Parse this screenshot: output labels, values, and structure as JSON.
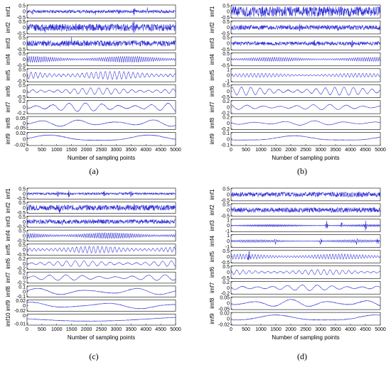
{
  "chart_data": [
    {
      "type": "line",
      "title": "",
      "caption": "(a)",
      "xlabel": "Number of sampling points",
      "xlim": [
        0,
        5000
      ],
      "xticks": [
        "0",
        "500",
        "1000",
        "1500",
        "2000",
        "2500",
        "3000",
        "3500",
        "4000",
        "4500",
        "5000"
      ],
      "line_color": "#2b2bd6",
      "panels": [
        {
          "name": "imf1",
          "ticks": [
            "0.5",
            "0",
            "-0.5"
          ],
          "ylim": [
            -0.5,
            0.5
          ],
          "style": "noise",
          "amp": 0.12,
          "freq": 0,
          "seed": 11,
          "bursts": [
            [
              200,
              0.35
            ],
            [
              2300,
              0.3
            ],
            [
              3100,
              0.45
            ],
            [
              3600,
              0.4
            ],
            [
              4050,
              0.3
            ]
          ]
        },
        {
          "name": "imf2",
          "ticks": [
            "0.5",
            "0",
            "-0.5"
          ],
          "ylim": [
            -0.5,
            0.5
          ],
          "style": "noise",
          "amp": 0.28,
          "freq": 0,
          "seed": 12,
          "bursts": [
            [
              600,
              0.45
            ],
            [
              3600,
              0.4
            ]
          ]
        },
        {
          "name": "imf3",
          "ticks": [
            "0.5",
            "0",
            "-0.5"
          ],
          "ylim": [
            -0.5,
            0.5
          ],
          "style": "noise",
          "amp": 0.22,
          "freq": 0,
          "seed": 13,
          "bursts": [
            [
              250,
              0.4
            ],
            [
              1500,
              0.35
            ]
          ]
        },
        {
          "name": "imf4",
          "ticks": [
            "0.5",
            "0",
            "-0.5"
          ],
          "ylim": [
            -0.5,
            0.5
          ],
          "style": "wave",
          "amp": 0.22,
          "freq": 70,
          "seed": 14,
          "bursts": []
        },
        {
          "name": "imf5",
          "ticks": [
            "0.5",
            "0",
            "-0.5"
          ],
          "ylim": [
            -0.5,
            0.5
          ],
          "style": "wave",
          "amp": 0.3,
          "freq": 32,
          "seed": 15,
          "bursts": []
        },
        {
          "name": "imf6",
          "ticks": [
            "0.5",
            "0",
            "-0.5"
          ],
          "ylim": [
            -0.5,
            0.5
          ],
          "style": "wave",
          "amp": 0.25,
          "freq": 18,
          "seed": 16,
          "bursts": []
        },
        {
          "name": "imf7",
          "ticks": [
            "0.2",
            "0",
            "-0.2"
          ],
          "ylim": [
            -0.2,
            0.2
          ],
          "style": "wave",
          "amp": 0.13,
          "freq": 9,
          "seed": 17,
          "bursts": []
        },
        {
          "name": "imf8",
          "ticks": [
            "0.05",
            "0",
            "-0.05"
          ],
          "ylim": [
            -0.07,
            0.07
          ],
          "style": "wave",
          "amp": 0.035,
          "freq": 4,
          "seed": 18,
          "bursts": []
        },
        {
          "name": "imf9",
          "ticks": [
            "0.02",
            "0",
            "-0.02"
          ],
          "ylim": [
            -0.02,
            0.02
          ],
          "style": "wave",
          "amp": 0.012,
          "freq": 1.5,
          "seed": 19,
          "bursts": []
        }
      ]
    },
    {
      "type": "line",
      "title": "",
      "caption": "(b)",
      "xlabel": "Number of sampling points",
      "xlim": [
        0,
        5000
      ],
      "xticks": [
        "0",
        "500",
        "1000",
        "1500",
        "2000",
        "2500",
        "3000",
        "3500",
        "4000",
        "4500",
        "5000"
      ],
      "line_color": "#2b2bd6",
      "panels": [
        {
          "name": "imf1",
          "ticks": [
            "0.5",
            "0",
            "-0.5"
          ],
          "ylim": [
            -0.5,
            0.5
          ],
          "style": "noise",
          "amp": 0.4,
          "freq": 0,
          "seed": 21,
          "bursts": []
        },
        {
          "name": "imf2",
          "ticks": [
            "0.5",
            "0",
            "-0.5"
          ],
          "ylim": [
            -0.5,
            0.5
          ],
          "style": "noise",
          "amp": 0.18,
          "freq": 0,
          "seed": 22,
          "bursts": [
            [
              2300,
              0.3
            ],
            [
              3600,
              0.3
            ]
          ]
        },
        {
          "name": "imf3",
          "ticks": [
            "0.5",
            "0",
            "-0.5"
          ],
          "ylim": [
            -0.5,
            0.5
          ],
          "style": "noise",
          "amp": 0.15,
          "freq": 0,
          "seed": 23,
          "bursts": [
            [
              2800,
              0.35
            ],
            [
              4050,
              0.3
            ]
          ]
        },
        {
          "name": "imf4",
          "ticks": [
            "0.5",
            "0",
            "-0.5"
          ],
          "ylim": [
            -0.5,
            0.5
          ],
          "style": "wave",
          "amp": 0.15,
          "freq": 70,
          "seed": 24,
          "bursts": []
        },
        {
          "name": "imf5",
          "ticks": [
            "1",
            "0",
            "-1"
          ],
          "ylim": [
            -1,
            1
          ],
          "style": "wave",
          "amp": 0.3,
          "freq": 40,
          "seed": 25,
          "bursts": []
        },
        {
          "name": "imf6",
          "ticks": [
            "0.5",
            "0",
            "-0.5"
          ],
          "ylim": [
            -0.5,
            0.5
          ],
          "style": "wave",
          "amp": 0.3,
          "freq": 16,
          "seed": 26,
          "bursts": []
        },
        {
          "name": "imf7",
          "ticks": [
            "0.2",
            "0",
            "-0.2"
          ],
          "ylim": [
            -0.2,
            0.2
          ],
          "style": "wave",
          "amp": 0.08,
          "freq": 9,
          "seed": 27,
          "bursts": []
        },
        {
          "name": "imf8",
          "ticks": [
            "0.2",
            "0",
            "-0.2"
          ],
          "ylim": [
            -0.2,
            0.2
          ],
          "style": "wave",
          "amp": 0.07,
          "freq": 5,
          "seed": 28,
          "bursts": []
        },
        {
          "name": "imf9",
          "ticks": [
            "0.1",
            "0",
            "-0.1"
          ],
          "ylim": [
            -0.1,
            0.1
          ],
          "style": "wave",
          "amp": 0.05,
          "freq": 1.5,
          "seed": 29,
          "bursts": []
        }
      ]
    },
    {
      "type": "line",
      "title": "",
      "caption": "(c)",
      "xlabel": "Number of sampling points",
      "xlim": [
        0,
        5000
      ],
      "xticks": [
        "0",
        "500",
        "1000",
        "1500",
        "2000",
        "2500",
        "3000",
        "3500",
        "4000",
        "4500",
        "5000"
      ],
      "line_color": "#2b2bd6",
      "panels": [
        {
          "name": "imf1",
          "ticks": [
            "0.5",
            "0",
            "-0.5"
          ],
          "ylim": [
            -0.5,
            0.5
          ],
          "style": "noise",
          "amp": 0.1,
          "freq": 0,
          "seed": 31,
          "bursts": [
            [
              1050,
              0.4
            ],
            [
              1400,
              0.4
            ],
            [
              2600,
              0.3
            ],
            [
              3500,
              0.3
            ]
          ]
        },
        {
          "name": "imf2",
          "ticks": [
            "0.5",
            "0",
            "-0.5"
          ],
          "ylim": [
            -0.5,
            0.5
          ],
          "style": "noise",
          "amp": 0.25,
          "freq": 0,
          "seed": 32,
          "bursts": [
            [
              1100,
              0.4
            ],
            [
              3600,
              0.35
            ]
          ]
        },
        {
          "name": "imf3",
          "ticks": [
            "0.5",
            "0",
            "-0.5"
          ],
          "ylim": [
            -0.5,
            0.5
          ],
          "style": "noise",
          "amp": 0.2,
          "freq": 0,
          "seed": 33,
          "bursts": [
            [
              1200,
              0.35
            ]
          ]
        },
        {
          "name": "imf4",
          "ticks": [
            "0.5",
            "0",
            "-0.5"
          ],
          "ylim": [
            -0.5,
            0.5
          ],
          "style": "wave",
          "amp": 0.25,
          "freq": 80,
          "seed": 34,
          "bursts": []
        },
        {
          "name": "imf5",
          "ticks": [
            "0.5",
            "0",
            "-0.5"
          ],
          "ylim": [
            -0.5,
            0.5
          ],
          "style": "wave",
          "amp": 0.3,
          "freq": 35,
          "seed": 35,
          "bursts": []
        },
        {
          "name": "imf6",
          "ticks": [
            "0.2",
            "0",
            "-0.2"
          ],
          "ylim": [
            -0.2,
            0.2
          ],
          "style": "wave",
          "amp": 0.1,
          "freq": 17,
          "seed": 36,
          "bursts": []
        },
        {
          "name": "imf7",
          "ticks": [
            "0.2",
            "0",
            "-0.2"
          ],
          "ylim": [
            -0.2,
            0.2
          ],
          "style": "wave",
          "amp": 0.1,
          "freq": 9,
          "seed": 37,
          "bursts": []
        },
        {
          "name": "imf8",
          "ticks": [
            "0.1",
            "0",
            "-0.1"
          ],
          "ylim": [
            -0.1,
            0.1
          ],
          "style": "wave",
          "amp": 0.06,
          "freq": 3,
          "seed": 38,
          "bursts": []
        },
        {
          "name": "imf9",
          "ticks": [
            "0.02",
            "0",
            "-0.02"
          ],
          "ylim": [
            -0.02,
            0.02
          ],
          "style": "wave",
          "amp": 0.012,
          "freq": 2,
          "seed": 39,
          "bursts": []
        },
        {
          "name": "imf10",
          "ticks": [
            "0",
            "-0.01"
          ],
          "ylim": [
            -0.012,
            0.002
          ],
          "style": "trend",
          "amp": 0.004,
          "freq": 1,
          "seed": 40,
          "bursts": []
        }
      ]
    },
    {
      "type": "line",
      "title": "",
      "caption": "(d)",
      "xlabel": "Number of sampling points",
      "xlim": [
        0,
        5000
      ],
      "xticks": [
        "0",
        "500",
        "1000",
        "1500",
        "2000",
        "2500",
        "3000",
        "3500",
        "4000",
        "4500",
        "5000"
      ],
      "line_color": "#2b2bd6",
      "panels": [
        {
          "name": "imf1",
          "ticks": [
            "0.5",
            "0",
            "-0.5"
          ],
          "ylim": [
            -0.5,
            0.5
          ],
          "style": "noise",
          "amp": 0.2,
          "freq": 0,
          "seed": 41,
          "bursts": []
        },
        {
          "name": "imf2",
          "ticks": [
            "0.5",
            "0",
            "-0.5"
          ],
          "ylim": [
            -0.5,
            0.5
          ],
          "style": "noise",
          "amp": 0.2,
          "freq": 0,
          "seed": 42,
          "bursts": []
        },
        {
          "name": "imf3",
          "ticks": [
            "1",
            "0",
            "-1"
          ],
          "ylim": [
            -1,
            1
          ],
          "style": "wave",
          "amp": 0.15,
          "freq": 140,
          "seed": 43,
          "bursts": [
            [
              3200,
              0.8
            ],
            [
              3700,
              0.7
            ],
            [
              4500,
              0.9
            ]
          ]
        },
        {
          "name": "imf4",
          "ticks": [
            "1",
            "0",
            "-1"
          ],
          "ylim": [
            -1,
            1
          ],
          "style": "wave",
          "amp": 0.2,
          "freq": 90,
          "seed": 44,
          "bursts": [
            [
              1500,
              0.7
            ],
            [
              3000,
              0.6
            ],
            [
              4200,
              0.6
            ],
            [
              4900,
              0.7
            ]
          ]
        },
        {
          "name": "imf5",
          "ticks": [
            "0.5",
            "0",
            "-0.5"
          ],
          "ylim": [
            -0.5,
            0.5
          ],
          "style": "wave",
          "amp": 0.2,
          "freq": 50,
          "seed": 45,
          "bursts": [
            [
              600,
              0.45
            ]
          ]
        },
        {
          "name": "imf6",
          "ticks": [
            "0.5",
            "0",
            "-0.5"
          ],
          "ylim": [
            -0.5,
            0.5
          ],
          "style": "wave",
          "amp": 0.2,
          "freq": 24,
          "seed": 46,
          "bursts": []
        },
        {
          "name": "imf7",
          "ticks": [
            "0.2",
            "0",
            "-0.2"
          ],
          "ylim": [
            -0.2,
            0.2
          ],
          "style": "wave",
          "amp": 0.09,
          "freq": 10,
          "seed": 47,
          "bursts": []
        },
        {
          "name": "imf8",
          "ticks": [
            "0.05",
            "0",
            "-0.05"
          ],
          "ylim": [
            -0.05,
            0.05
          ],
          "style": "wave",
          "amp": 0.03,
          "freq": 4,
          "seed": 48,
          "bursts": []
        },
        {
          "name": "imf9",
          "ticks": [
            "0.02",
            "0",
            "-0.02"
          ],
          "ylim": [
            -0.02,
            0.02
          ],
          "style": "wave",
          "amp": 0.012,
          "freq": 1.5,
          "seed": 49,
          "bursts": []
        }
      ]
    }
  ]
}
